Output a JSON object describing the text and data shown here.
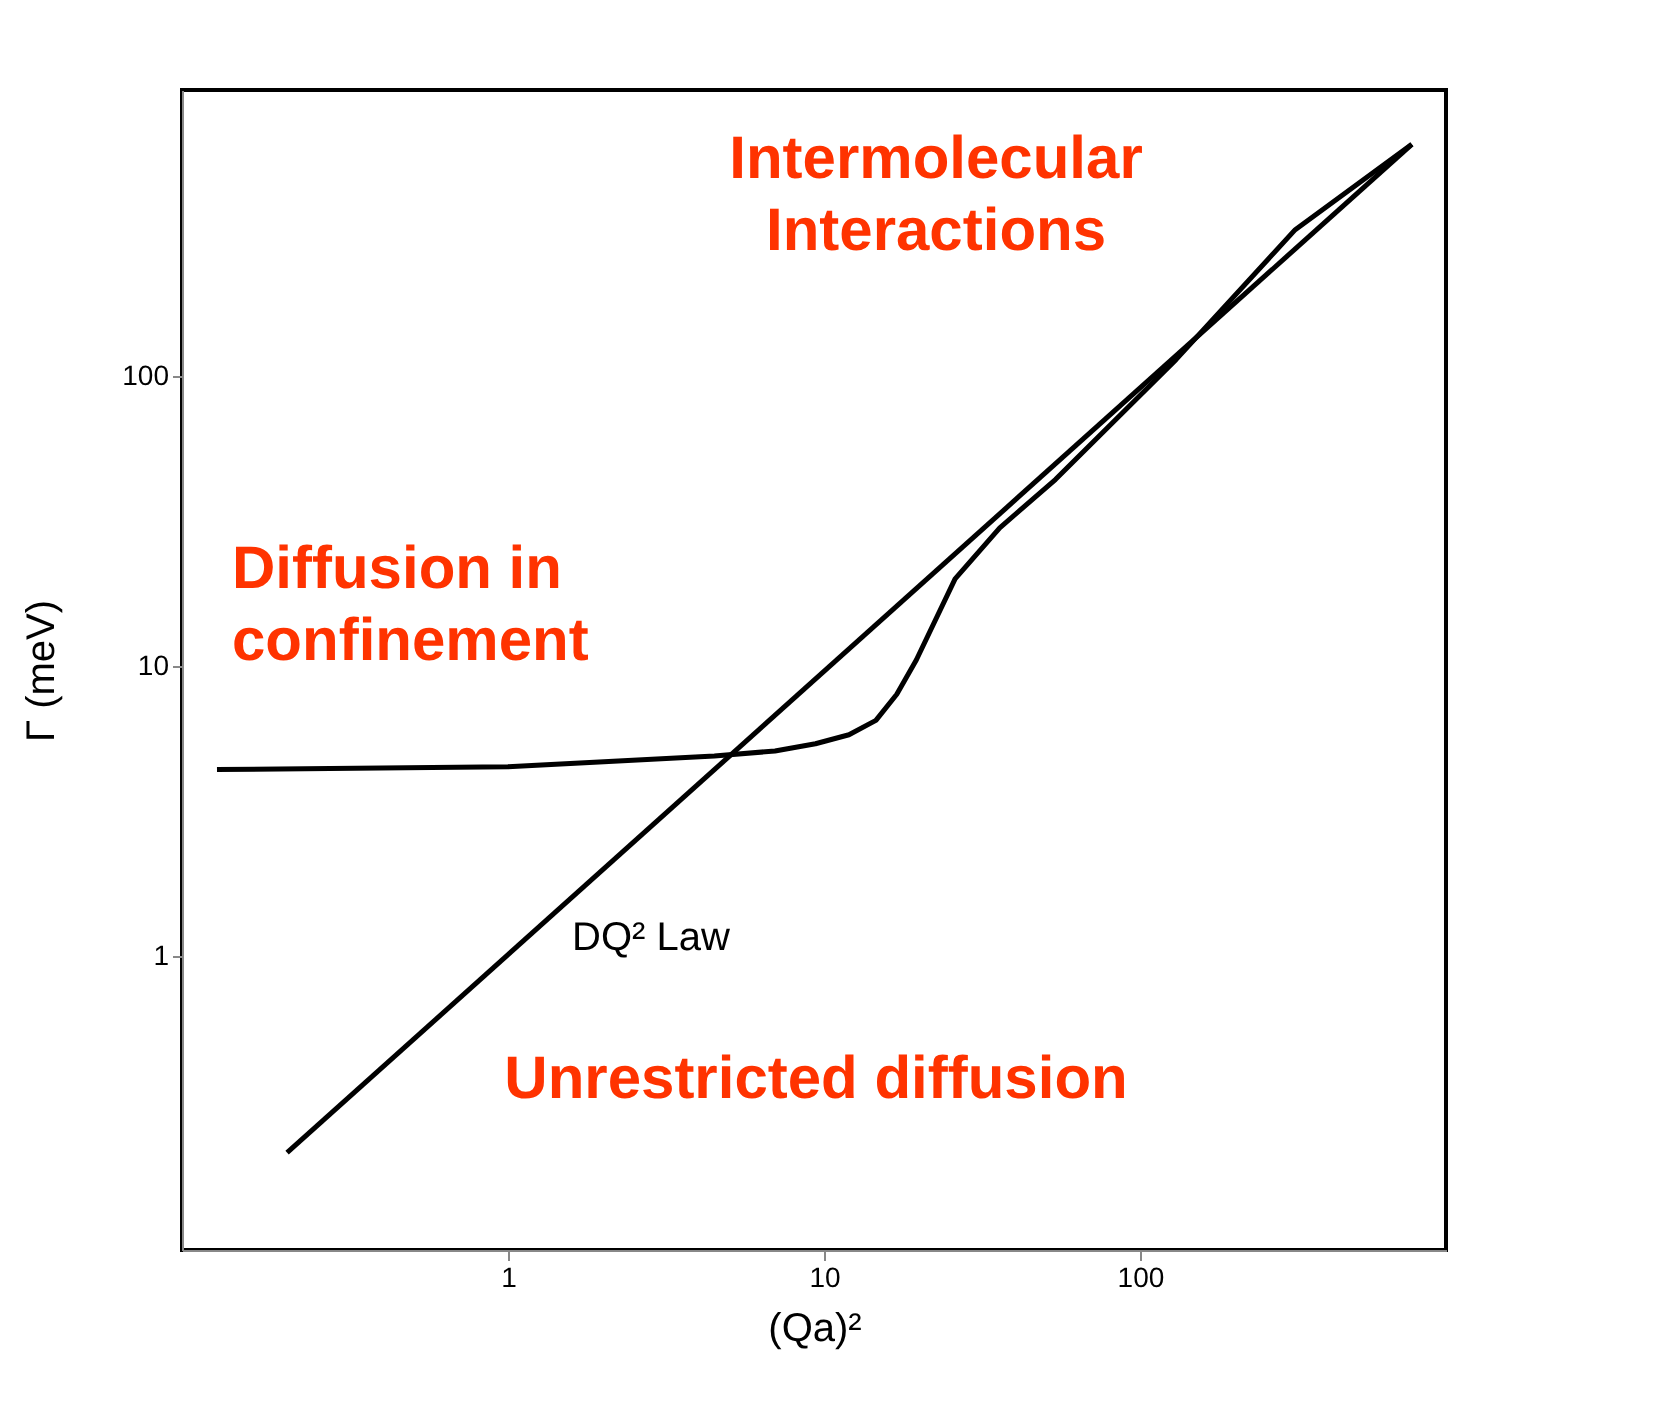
{
  "chart_data": {
    "type": "line",
    "xlabel": "(Qa)²",
    "ylabel": "Γ (meV)",
    "log": "xy",
    "grid": false,
    "marker": "none",
    "line_style": "solid",
    "xlim": [
      0.093,
      930
    ],
    "ylim": [
      0.097,
      970
    ],
    "xticks": [
      1,
      10,
      100
    ],
    "yticks": [
      1,
      10,
      100
    ],
    "series": [
      {
        "color": "#000000",
        "x": [
          0.2,
          725
        ],
        "values": [
          0.21,
          630
        ]
      },
      {
        "color": "#000000",
        "x": [
          0.12,
          1,
          4.5,
          7,
          9.4,
          12,
          14.6,
          17,
          19.6,
          26,
          36,
          54,
          130,
          310,
          725
        ],
        "values": [
          4.4,
          4.5,
          4.9,
          5.1,
          5.4,
          5.8,
          6.5,
          8,
          10.5,
          20,
          30,
          44,
          114,
          320,
          630
        ]
      }
    ],
    "annotations": [
      "Intermolecular\nInteractions",
      "Diffusion in\nconfinement",
      {
        "text": "DQ² Law",
        "x": 1.42,
        "y": 1.49
      },
      "Unrestricted diffusion"
    ]
  }
}
